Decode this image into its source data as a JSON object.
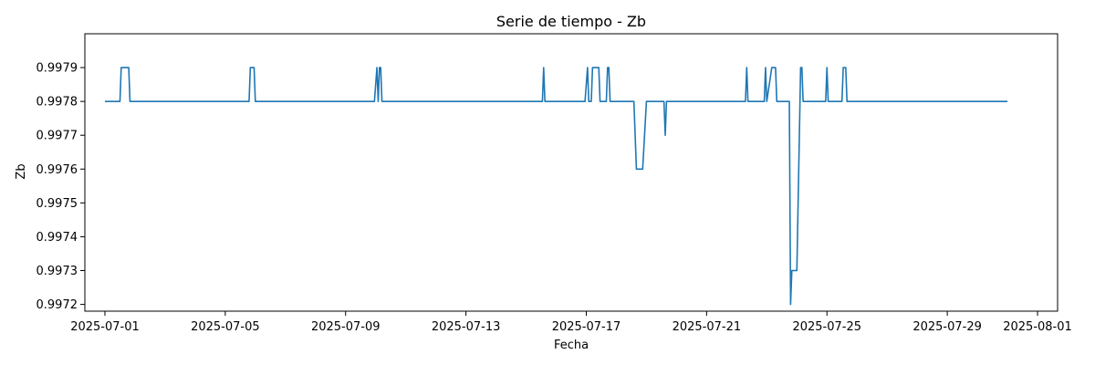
{
  "chart_data": {
    "type": "line",
    "title": "Serie de tiempo - Zb",
    "xlabel": "Fecha",
    "ylabel": "Zb",
    "x_type": "date",
    "xlim": [
      "2025-06-30T08:00",
      "2025-08-01T16:00"
    ],
    "ylim": [
      0.99718,
      0.998
    ],
    "x_ticks": [
      "2025-07-01",
      "2025-07-05",
      "2025-07-09",
      "2025-07-13",
      "2025-07-17",
      "2025-07-21",
      "2025-07-25",
      "2025-07-29",
      "2025-08-01"
    ],
    "y_ticks": [
      0.9972,
      0.9973,
      0.9974,
      0.9975,
      0.9976,
      0.9977,
      0.9978,
      0.9979
    ],
    "grid": false,
    "color": "#1f77b4",
    "series": [
      {
        "x": [
          "2025-07-01T00:00",
          "2025-07-01T12:00",
          "2025-07-01T13:00",
          "2025-07-01T19:00",
          "2025-07-01T20:00",
          "2025-07-05T19:00",
          "2025-07-05T20:00",
          "2025-07-05T23:00",
          "2025-07-06T00:00",
          "2025-07-09T23:00",
          "2025-07-10T01:00",
          "2025-07-10T02:00",
          "2025-07-10T03:00",
          "2025-07-10T04:00",
          "2025-07-10T05:00",
          "2025-07-15T13:00",
          "2025-07-15T14:00",
          "2025-07-15T15:00",
          "2025-07-16T23:00",
          "2025-07-17T01:00",
          "2025-07-17T02:00",
          "2025-07-17T04:00",
          "2025-07-17T05:00",
          "2025-07-17T10:00",
          "2025-07-17T11:00",
          "2025-07-17T16:00",
          "2025-07-17T17:00",
          "2025-07-17T18:00",
          "2025-07-17T19:00",
          "2025-07-18T14:00",
          "2025-07-18T16:00",
          "2025-07-18T21:00",
          "2025-07-19T00:00",
          "2025-07-19T14:00",
          "2025-07-19T15:00",
          "2025-07-19T16:00",
          "2025-07-22T07:00",
          "2025-07-22T08:00",
          "2025-07-22T09:00",
          "2025-07-22T22:00",
          "2025-07-22T23:00",
          "2025-07-23T00:00",
          "2025-07-23T04:00",
          "2025-07-23T07:00",
          "2025-07-23T08:00",
          "2025-07-23T18:00",
          "2025-07-23T19:00",
          "2025-07-23T20:00",
          "2025-07-24T00:00",
          "2025-07-24T02:00",
          "2025-07-24T03:00",
          "2025-07-24T04:00",
          "2025-07-24T05:00",
          "2025-07-24T12:00",
          "2025-07-24T23:00",
          "2025-07-25T00:00",
          "2025-07-25T01:00",
          "2025-07-25T12:00",
          "2025-07-25T13:00",
          "2025-07-25T15:00",
          "2025-07-25T16:00",
          "2025-07-31T00:00"
        ],
        "y": [
          0.9978,
          0.9978,
          0.9979,
          0.9979,
          0.9978,
          0.9978,
          0.9979,
          0.9979,
          0.9978,
          0.9978,
          0.9979,
          0.9978,
          0.9979,
          0.9979,
          0.9978,
          0.9978,
          0.9979,
          0.9978,
          0.9978,
          0.9979,
          0.9978,
          0.9978,
          0.9979,
          0.9979,
          0.9978,
          0.9978,
          0.9979,
          0.9979,
          0.9978,
          0.9978,
          0.9976,
          0.9976,
          0.9978,
          0.9978,
          0.9977,
          0.9978,
          0.9978,
          0.9979,
          0.9978,
          0.9978,
          0.9979,
          0.9978,
          0.9979,
          0.9979,
          0.9978,
          0.9978,
          0.9972,
          0.9973,
          0.9973,
          0.9977,
          0.9979,
          0.9979,
          0.9978,
          0.9978,
          0.9978,
          0.9979,
          0.9978,
          0.9978,
          0.9979,
          0.9979,
          0.9978,
          0.9978
        ]
      }
    ]
  }
}
